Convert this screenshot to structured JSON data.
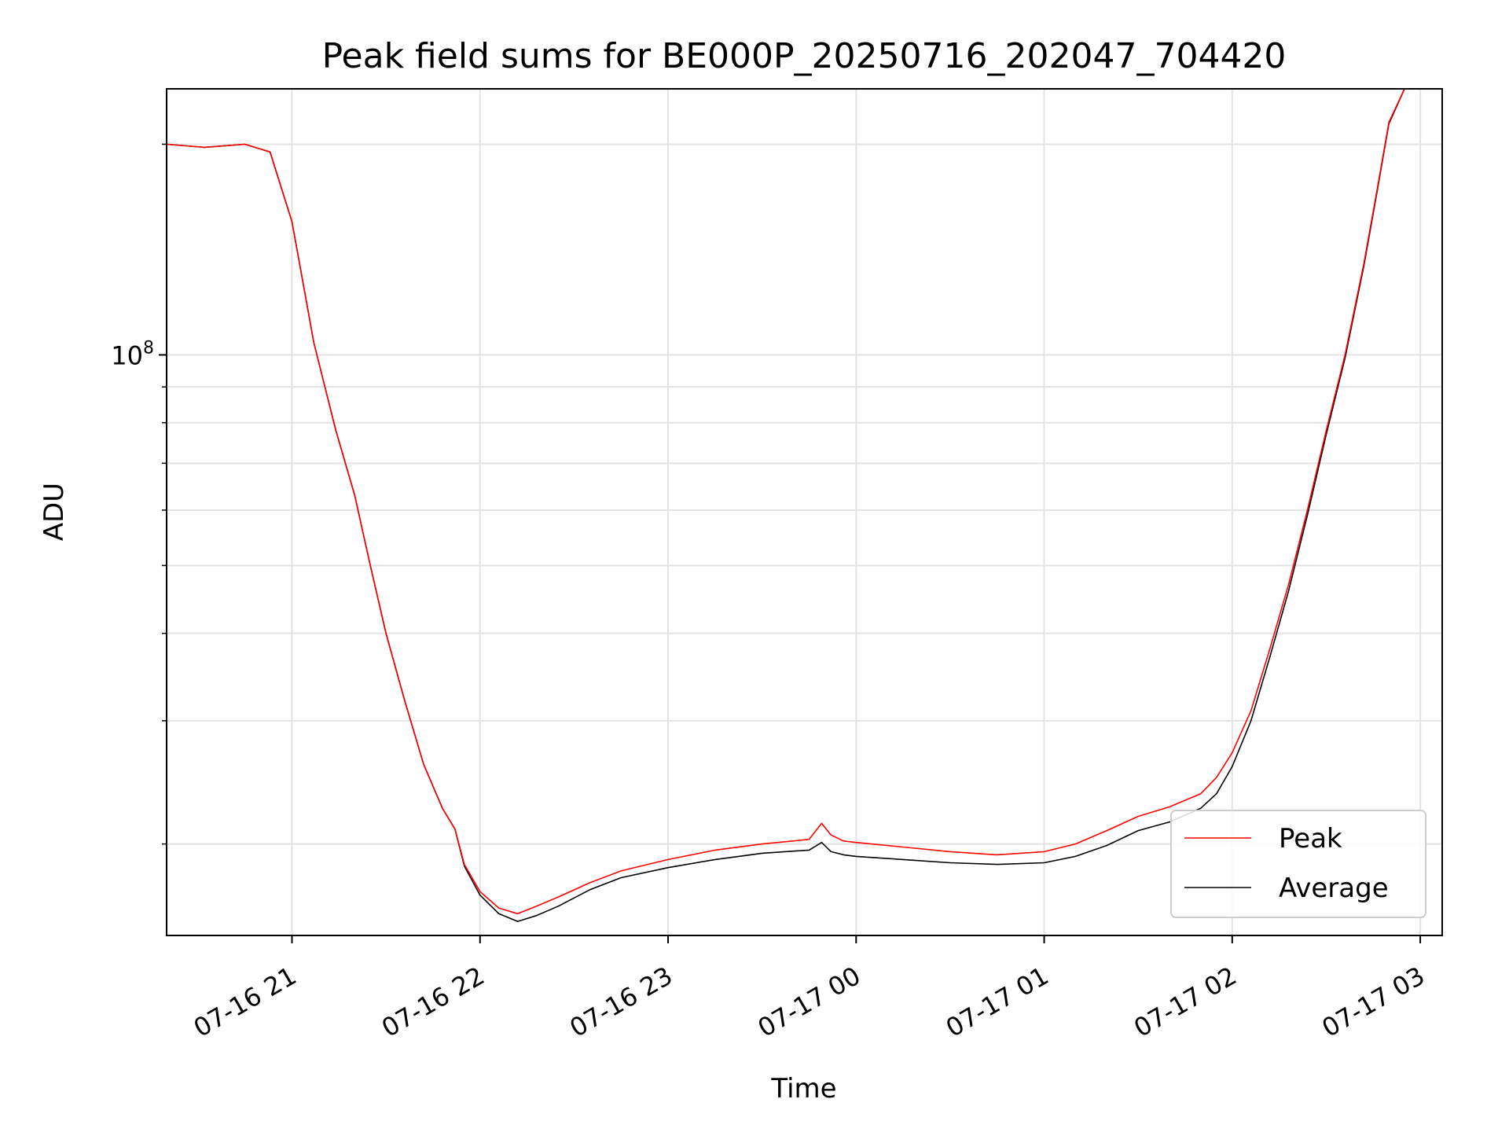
{
  "chart_data": {
    "type": "line",
    "title": "Peak field sums for BE000P_20250716_202047_704420",
    "xlabel": "Time",
    "ylabel": "ADU",
    "x_ticks": [
      "07-16 21",
      "07-16 22",
      "07-16 23",
      "07-17 00",
      "07-17 01",
      "07-17 02",
      "07-17 03"
    ],
    "y_tick_label": "10",
    "y_tick_exponent": "8",
    "y_scale": "log",
    "xlim": [
      "2025-07-16 20:20",
      "2025-07-17 03:07"
    ],
    "ylim": [
      14800000,
      240000000
    ],
    "grid": true,
    "legend_position": "lower-right",
    "series": [
      {
        "name": "Peak",
        "color": "#ff0000",
        "x": [
          "2025-07-16 20:20",
          "2025-07-16 20:32",
          "2025-07-16 20:45",
          "2025-07-16 20:53",
          "2025-07-16 21:00",
          "2025-07-16 21:07",
          "2025-07-16 21:14",
          "2025-07-16 21:20",
          "2025-07-16 21:25",
          "2025-07-16 21:30",
          "2025-07-16 21:36",
          "2025-07-16 21:42",
          "2025-07-16 21:48",
          "2025-07-16 21:52",
          "2025-07-16 21:55",
          "2025-07-16 22:00",
          "2025-07-16 22:06",
          "2025-07-16 22:12",
          "2025-07-16 22:18",
          "2025-07-16 22:25",
          "2025-07-16 22:35",
          "2025-07-16 22:45",
          "2025-07-16 23:00",
          "2025-07-16 23:15",
          "2025-07-16 23:30",
          "2025-07-16 23:45",
          "2025-07-16 23:49",
          "2025-07-16 23:52",
          "2025-07-16 23:56",
          "2025-07-17 00:00",
          "2025-07-17 00:15",
          "2025-07-17 00:30",
          "2025-07-17 00:45",
          "2025-07-17 01:00",
          "2025-07-17 01:10",
          "2025-07-17 01:20",
          "2025-07-17 01:30",
          "2025-07-17 01:40",
          "2025-07-17 01:50",
          "2025-07-17 01:55",
          "2025-07-17 02:00",
          "2025-07-17 02:06",
          "2025-07-17 02:12",
          "2025-07-17 02:18",
          "2025-07-17 02:24",
          "2025-07-17 02:30",
          "2025-07-17 02:36",
          "2025-07-17 02:42",
          "2025-07-17 02:46",
          "2025-07-17 02:50",
          "2025-07-17 02:55"
        ],
        "values": [
          200000000,
          198000000,
          200000000,
          195000000,
          155000000,
          104000000,
          78000000,
          63000000,
          50000000,
          40000000,
          32000000,
          26000000,
          22500000,
          21000000,
          18700000,
          17100000,
          16200000,
          15900000,
          16300000,
          16800000,
          17600000,
          18300000,
          19000000,
          19600000,
          20000000,
          20300000,
          21400000,
          20600000,
          20200000,
          20100000,
          19800000,
          19500000,
          19300000,
          19500000,
          20000000,
          20900000,
          21900000,
          22600000,
          23600000,
          24900000,
          27000000,
          31000000,
          38000000,
          47000000,
          60000000,
          78000000,
          100000000,
          135000000,
          170000000,
          215000000,
          240000000
        ]
      },
      {
        "name": "Average",
        "color": "#000000",
        "x": [
          "2025-07-16 20:20",
          "2025-07-16 20:32",
          "2025-07-16 20:45",
          "2025-07-16 20:53",
          "2025-07-16 21:00",
          "2025-07-16 21:07",
          "2025-07-16 21:14",
          "2025-07-16 21:20",
          "2025-07-16 21:25",
          "2025-07-16 21:30",
          "2025-07-16 21:36",
          "2025-07-16 21:42",
          "2025-07-16 21:48",
          "2025-07-16 21:52",
          "2025-07-16 21:55",
          "2025-07-16 22:00",
          "2025-07-16 22:06",
          "2025-07-16 22:12",
          "2025-07-16 22:18",
          "2025-07-16 22:25",
          "2025-07-16 22:35",
          "2025-07-16 22:45",
          "2025-07-16 23:00",
          "2025-07-16 23:15",
          "2025-07-16 23:30",
          "2025-07-16 23:45",
          "2025-07-16 23:49",
          "2025-07-16 23:52",
          "2025-07-16 23:56",
          "2025-07-17 00:00",
          "2025-07-17 00:15",
          "2025-07-17 00:30",
          "2025-07-17 00:45",
          "2025-07-17 01:00",
          "2025-07-17 01:10",
          "2025-07-17 01:20",
          "2025-07-17 01:30",
          "2025-07-17 01:40",
          "2025-07-17 01:50",
          "2025-07-17 01:55",
          "2025-07-17 02:00",
          "2025-07-17 02:06",
          "2025-07-17 02:12",
          "2025-07-17 02:18",
          "2025-07-17 02:24",
          "2025-07-17 02:30",
          "2025-07-17 02:36",
          "2025-07-17 02:42",
          "2025-07-17 02:46",
          "2025-07-17 02:50",
          "2025-07-17 02:55"
        ],
        "values": [
          200000000,
          198000000,
          200000000,
          195000000,
          155000000,
          104000000,
          78000000,
          63000000,
          50000000,
          40000000,
          32000000,
          26000000,
          22500000,
          21000000,
          18600000,
          16900000,
          15900000,
          15500000,
          15800000,
          16300000,
          17200000,
          17900000,
          18500000,
          19000000,
          19400000,
          19600000,
          20100000,
          19500000,
          19300000,
          19200000,
          19000000,
          18800000,
          18700000,
          18800000,
          19200000,
          19900000,
          20900000,
          21500000,
          22500000,
          23600000,
          25800000,
          30000000,
          37000000,
          46000000,
          59000000,
          77000000,
          99000000,
          134000000,
          169000000,
          214000000,
          240000000
        ]
      }
    ]
  }
}
